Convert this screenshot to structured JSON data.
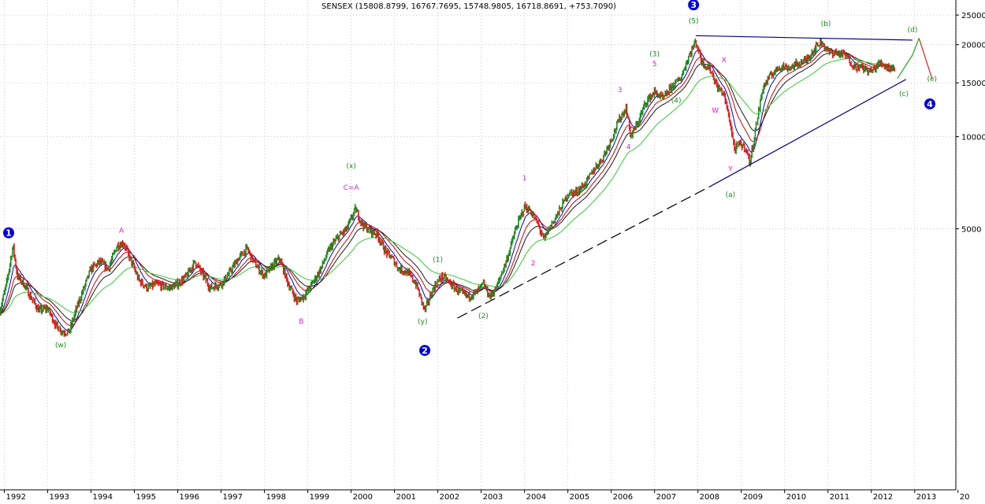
{
  "chart_data": {
    "type": "candlestick",
    "title": "SENSEX (15808.8799, 16767.7695, 15748.9805, 16718.8691, +753.7090)",
    "y_scale": "log",
    "ylim": [
      700,
      28000
    ],
    "xlim": [
      1991.9,
      2013.95
    ],
    "x_ticks": [
      "1992",
      "1993",
      "1994",
      "1995",
      "1996",
      "1997",
      "1998",
      "1999",
      "2000",
      "2001",
      "2002",
      "2003",
      "2004",
      "2005",
      "2006",
      "2007",
      "2008",
      "2009",
      "2010",
      "2011",
      "2012",
      "2013",
      "20"
    ],
    "y_ticks": [
      25000,
      20000,
      15000,
      10000,
      5000
    ],
    "grid": true,
    "series": [
      {
        "type": "price",
        "points": [
          [
            1991.9,
            2700
          ],
          [
            1992.05,
            3300
          ],
          [
            1992.2,
            4400
          ],
          [
            1992.3,
            3500
          ],
          [
            1992.45,
            3300
          ],
          [
            1992.6,
            3000
          ],
          [
            1992.8,
            2700
          ],
          [
            1993.0,
            2750
          ],
          [
            1993.2,
            2400
          ],
          [
            1993.35,
            2300
          ],
          [
            1993.5,
            2300
          ],
          [
            1993.65,
            2700
          ],
          [
            1993.8,
            3100
          ],
          [
            1994.0,
            3700
          ],
          [
            1994.2,
            3900
          ],
          [
            1994.4,
            3700
          ],
          [
            1994.6,
            4400
          ],
          [
            1994.75,
            4500
          ],
          [
            1994.9,
            4000
          ],
          [
            1995.1,
            3400
          ],
          [
            1995.3,
            3200
          ],
          [
            1995.5,
            3300
          ],
          [
            1995.8,
            3200
          ],
          [
            1996.0,
            3300
          ],
          [
            1996.2,
            3500
          ],
          [
            1996.4,
            3900
          ],
          [
            1996.55,
            3600
          ],
          [
            1996.75,
            3200
          ],
          [
            1997.0,
            3300
          ],
          [
            1997.2,
            3600
          ],
          [
            1997.4,
            4000
          ],
          [
            1997.6,
            4300
          ],
          [
            1997.8,
            3800
          ],
          [
            1998.0,
            3500
          ],
          [
            1998.2,
            3800
          ],
          [
            1998.35,
            4000
          ],
          [
            1998.55,
            3300
          ],
          [
            1998.75,
            2900
          ],
          [
            1998.9,
            3000
          ],
          [
            1999.1,
            3300
          ],
          [
            1999.3,
            3700
          ],
          [
            1999.5,
            4300
          ],
          [
            1999.7,
            4700
          ],
          [
            1999.9,
            5000
          ],
          [
            2000.1,
            5800
          ],
          [
            2000.25,
            5200
          ],
          [
            2000.45,
            4900
          ],
          [
            2000.6,
            4800
          ],
          [
            2000.8,
            4200
          ],
          [
            2000.95,
            4000
          ],
          [
            2001.1,
            3700
          ],
          [
            2001.3,
            3600
          ],
          [
            2001.5,
            3300
          ],
          [
            2001.7,
            2700
          ],
          [
            2001.9,
            3200
          ],
          [
            2002.1,
            3500
          ],
          [
            2002.3,
            3300
          ],
          [
            2002.5,
            3100
          ],
          [
            2002.7,
            3000
          ],
          [
            2002.9,
            3100
          ],
          [
            2003.05,
            3300
          ],
          [
            2003.2,
            3000
          ],
          [
            2003.35,
            3200
          ],
          [
            2003.6,
            4000
          ],
          [
            2003.8,
            5000
          ],
          [
            2004.0,
            5900
          ],
          [
            2004.15,
            5700
          ],
          [
            2004.3,
            5200
          ],
          [
            2004.45,
            4600
          ],
          [
            2004.6,
            5100
          ],
          [
            2004.8,
            5700
          ],
          [
            2005.0,
            6500
          ],
          [
            2005.2,
            6600
          ],
          [
            2005.4,
            7000
          ],
          [
            2005.6,
            7800
          ],
          [
            2005.8,
            8500
          ],
          [
            2006.0,
            9800
          ],
          [
            2006.2,
            11500
          ],
          [
            2006.35,
            12400
          ],
          [
            2006.45,
            10000
          ],
          [
            2006.6,
            11000
          ],
          [
            2006.8,
            13000
          ],
          [
            2007.0,
            14000
          ],
          [
            2007.2,
            13300
          ],
          [
            2007.4,
            14600
          ],
          [
            2007.6,
            15500
          ],
          [
            2007.8,
            18500
          ],
          [
            2007.95,
            20500
          ],
          [
            2008.1,
            17500
          ],
          [
            2008.3,
            16500
          ],
          [
            2008.45,
            14500
          ],
          [
            2008.6,
            13800
          ],
          [
            2008.75,
            11000
          ],
          [
            2008.85,
            9000
          ],
          [
            2008.95,
            9500
          ],
          [
            2009.1,
            9200
          ],
          [
            2009.2,
            8200
          ],
          [
            2009.35,
            11000
          ],
          [
            2009.5,
            14500
          ],
          [
            2009.7,
            16000
          ],
          [
            2009.9,
            17000
          ],
          [
            2010.1,
            16800
          ],
          [
            2010.3,
            17300
          ],
          [
            2010.5,
            17800
          ],
          [
            2010.7,
            19500
          ],
          [
            2010.85,
            20500
          ],
          [
            2011.0,
            19000
          ],
          [
            2011.2,
            18800
          ],
          [
            2011.4,
            18500
          ],
          [
            2011.6,
            17000
          ],
          [
            2011.8,
            16800
          ],
          [
            2012.0,
            16300
          ],
          [
            2012.2,
            17500
          ],
          [
            2012.4,
            16800
          ],
          [
            2012.55,
            16700
          ]
        ]
      },
      {
        "type": "projection",
        "points": [
          [
            2012.6,
            15500
          ],
          [
            2012.95,
            18500
          ],
          [
            2013.1,
            21000
          ],
          [
            2013.4,
            15500
          ]
        ]
      }
    ],
    "trendlines": [
      {
        "color": "#000000",
        "dashed": true,
        "points": [
          [
            2002.45,
            2550
          ],
          [
            2008.3,
            6900
          ]
        ]
      },
      {
        "color": "#00008b",
        "dashed": false,
        "points": [
          [
            2008.3,
            6900
          ],
          [
            2012.8,
            15400
          ]
        ]
      },
      {
        "color": "#00008b",
        "dashed": false,
        "points": [
          [
            2007.95,
            21400
          ],
          [
            2012.95,
            20700
          ]
        ]
      }
    ],
    "annotations": [
      {
        "text": "1",
        "x": 1992.1,
        "y": 4850,
        "style": "circle"
      },
      {
        "text": "2",
        "x": 2001.7,
        "y": 2000,
        "style": "circle"
      },
      {
        "text": "3",
        "x": 2007.9,
        "y": 27000,
        "style": "circle"
      },
      {
        "text": "4",
        "x": 2013.35,
        "y": 12800,
        "style": "circle"
      },
      {
        "text": "(w)",
        "x": 1993.3,
        "y": 2050,
        "style": "green"
      },
      {
        "text": "A",
        "x": 1994.7,
        "y": 4850,
        "style": "magenta"
      },
      {
        "text": "B",
        "x": 1998.85,
        "y": 2450,
        "style": "magenta"
      },
      {
        "text": "(x)",
        "x": 2000.0,
        "y": 7900,
        "style": "green"
      },
      {
        "text": "C=A",
        "x": 2000.0,
        "y": 6700,
        "style": "magenta"
      },
      {
        "text": "(y)",
        "x": 2001.65,
        "y": 2450,
        "style": "green"
      },
      {
        "text": "(1)",
        "x": 2002.0,
        "y": 3900,
        "style": "green"
      },
      {
        "text": "(2)",
        "x": 2003.05,
        "y": 2550,
        "style": "green"
      },
      {
        "text": "1",
        "x": 2004.0,
        "y": 7200,
        "style": "magenta"
      },
      {
        "text": "2",
        "x": 2004.2,
        "y": 3800,
        "style": "magenta"
      },
      {
        "text": "3",
        "x": 2006.2,
        "y": 14000,
        "style": "magenta"
      },
      {
        "text": "4",
        "x": 2006.4,
        "y": 9100,
        "style": "magenta"
      },
      {
        "text": "(3)",
        "x": 2007.0,
        "y": 18300,
        "style": "green"
      },
      {
        "text": "5",
        "x": 2007.0,
        "y": 17000,
        "style": "magenta"
      },
      {
        "text": "(4)",
        "x": 2007.5,
        "y": 12900,
        "style": "green"
      },
      {
        "text": "(5)",
        "x": 2007.9,
        "y": 23500,
        "style": "green"
      },
      {
        "text": "X",
        "x": 2008.6,
        "y": 17500,
        "style": "magenta"
      },
      {
        "text": "W",
        "x": 2008.4,
        "y": 12000,
        "style": "magenta"
      },
      {
        "text": "Y",
        "x": 2008.75,
        "y": 7700,
        "style": "magenta"
      },
      {
        "text": "(a)",
        "x": 2008.75,
        "y": 6350,
        "style": "green"
      },
      {
        "text": "(b)",
        "x": 2010.95,
        "y": 23000,
        "style": "green"
      },
      {
        "text": "(c)",
        "x": 2012.75,
        "y": 13600,
        "style": "green"
      },
      {
        "text": "(d)",
        "x": 2012.95,
        "y": 22000,
        "style": "green"
      },
      {
        "text": "(e)",
        "x": 2013.4,
        "y": 15200,
        "style": "green"
      }
    ]
  }
}
